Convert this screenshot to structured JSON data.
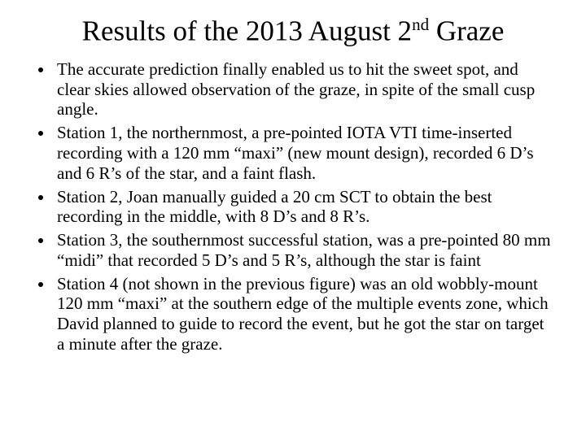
{
  "title_html": "Results of the 2013 August 2<sup>nd</sup> Graze",
  "bullets": [
    "The accurate prediction finally enabled us to hit the sweet spot, and clear skies allowed observation of the graze, in spite of the small cusp angle.",
    "Station 1, the northernmost, a pre-pointed IOTA VTI time-inserted recording with a 120 mm “maxi” (new mount design), recorded 6 D’s and 6 R’s of the star, and a faint flash.",
    "Station 2, Joan manually guided a 20 cm SCT to obtain the best recording in the middle, with 8 D’s and 8 R’s.",
    "Station 3, the southernmost successful station, was a pre-pointed 80 mm “midi” that recorded 5 D’s and 5 R’s, although the star is faint",
    "Station 4 (not shown in the previous figure) was an old wobbly-mount 120 mm “maxi” at the southern edge of the multiple events zone, which David planned to guide to record the event, but he got the star on target a minute after the graze."
  ],
  "styles": {
    "background_color": "#ffffff",
    "text_color": "#000000",
    "font_family": "Times New Roman",
    "title_fontsize": 35,
    "body_fontsize": 21,
    "slide_width": 720,
    "slide_height": 540
  }
}
